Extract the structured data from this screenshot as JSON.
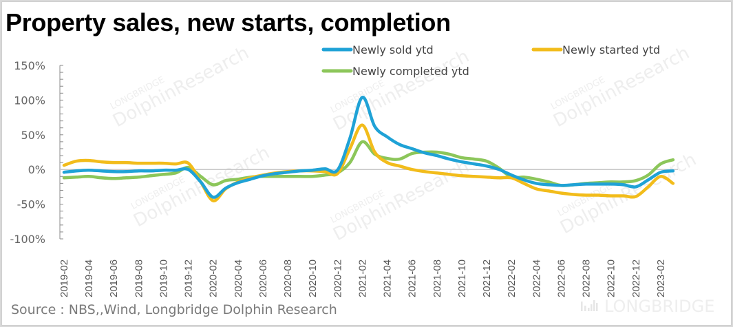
{
  "title": "Property sales, new starts, completion",
  "source": "Source : NBS,,Wind, Longbridge Dolphin Research",
  "watermark": {
    "main": "DolphinResearch",
    "brand": "LONGBRIDGE",
    "footer": "LONGBRIDGE"
  },
  "chart_data": {
    "type": "line",
    "title": "Property sales, new starts, completion",
    "xlabel": "",
    "ylabel": "",
    "ylim": [
      -100,
      150
    ],
    "yticks": [
      150,
      100,
      50,
      0,
      -50,
      -100
    ],
    "ytick_labels": [
      "150%",
      "100%",
      "50%",
      "0%",
      "-50%",
      "-100%"
    ],
    "xtick_labels": [
      "2019-02",
      "2019-04",
      "2019-06",
      "2019-08",
      "2019-10",
      "2019-12",
      "2020-02",
      "2020-04",
      "2020-06",
      "2020-08",
      "2020-10",
      "2020-12",
      "2021-02",
      "2021-04",
      "2021-06",
      "2021-08",
      "2021-10",
      "2021-12",
      "2022-02",
      "2022-04",
      "2022-06",
      "2022-08",
      "2022-10",
      "2022-12",
      "2023-02"
    ],
    "x": [
      "2019-02",
      "2019-03",
      "2019-04",
      "2019-05",
      "2019-06",
      "2019-07",
      "2019-08",
      "2019-09",
      "2019-10",
      "2019-11",
      "2019-12",
      "2020-01",
      "2020-02",
      "2020-03",
      "2020-04",
      "2020-05",
      "2020-06",
      "2020-07",
      "2020-08",
      "2020-09",
      "2020-10",
      "2020-11",
      "2020-12",
      "2021-01",
      "2021-02",
      "2021-03",
      "2021-04",
      "2021-05",
      "2021-06",
      "2021-07",
      "2021-08",
      "2021-09",
      "2021-10",
      "2021-11",
      "2021-12",
      "2022-01",
      "2022-02",
      "2022-03",
      "2022-04",
      "2022-05",
      "2022-06",
      "2022-07",
      "2022-08",
      "2022-09",
      "2022-10",
      "2022-11",
      "2022-12",
      "2023-01",
      "2023-02",
      "2023-03"
    ],
    "legend": "top-right",
    "series": [
      {
        "name": "Newly sold ytd",
        "color": "#1fa2d6",
        "values": [
          -4,
          -2,
          -1,
          -2,
          -3,
          -3,
          -2,
          -2,
          -1,
          -1,
          0,
          -18,
          -40,
          -27,
          -19,
          -14,
          -9,
          -6,
          -4,
          -2,
          -1,
          1,
          -1,
          45,
          104,
          62,
          47,
          36,
          30,
          24,
          20,
          15,
          11,
          8,
          5,
          0,
          -8,
          -15,
          -20,
          -22,
          -23,
          -22,
          -21,
          -21,
          -21,
          -22,
          -25,
          -15,
          -4,
          -2
        ]
      },
      {
        "name": "Newly started ytd",
        "color": "#f2bc1b",
        "values": [
          6,
          12,
          13,
          11,
          10,
          10,
          9,
          9,
          9,
          8,
          9,
          -18,
          -45,
          -28,
          -18,
          -12,
          -8,
          -5,
          -3,
          -2,
          -2,
          -3,
          -6,
          30,
          64,
          25,
          10,
          5,
          0,
          -3,
          -5,
          -7,
          -9,
          -10,
          -11,
          -12,
          -12,
          -20,
          -28,
          -31,
          -34,
          -36,
          -37,
          -37,
          -38,
          -38,
          -39,
          -25,
          -10,
          -20
        ]
      },
      {
        "name": "Newly completed ytd",
        "color": "#8cc65a",
        "values": [
          -12,
          -11,
          -10,
          -12,
          -13,
          -12,
          -11,
          -9,
          -7,
          -5,
          3,
          -10,
          -22,
          -16,
          -14,
          -11,
          -10,
          -10,
          -10,
          -10,
          -10,
          -8,
          -5,
          10,
          40,
          22,
          16,
          15,
          23,
          25,
          25,
          22,
          17,
          15,
          12,
          2,
          -11,
          -11,
          -14,
          -18,
          -23,
          -22,
          -20,
          -19,
          -18,
          -18,
          -16,
          -8,
          8,
          14
        ]
      }
    ]
  }
}
